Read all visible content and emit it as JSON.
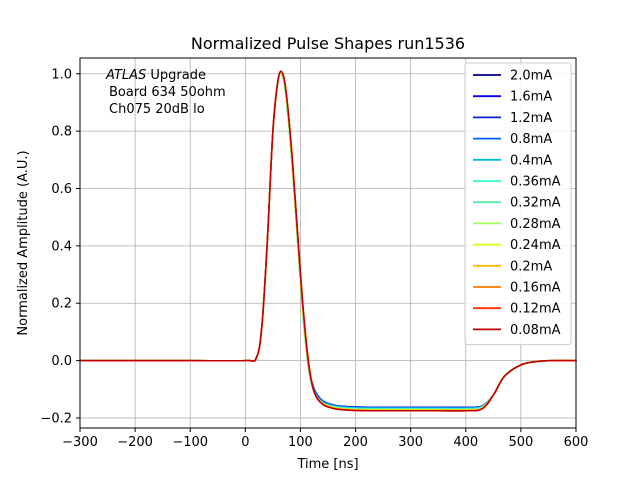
{
  "chart_data": {
    "type": "line",
    "title": "Normalized Pulse Shapes run1536",
    "xlabel": "Time [ns]",
    "ylabel": "Normalized Amplitude (A.U.)",
    "xlim": [
      -300,
      600
    ],
    "ylim": [
      -0.235,
      1.055
    ],
    "xticks": [
      -300,
      -200,
      -100,
      0,
      100,
      200,
      300,
      400,
      500,
      600
    ],
    "xtick_labels": [
      "−300",
      "−200",
      "−100",
      "0",
      "100",
      "200",
      "300",
      "400",
      "500",
      "600"
    ],
    "yticks": [
      -0.2,
      0.0,
      0.2,
      0.4,
      0.6,
      0.8,
      1.0
    ],
    "ytick_labels": [
      "−0.2",
      "0.0",
      "0.2",
      "0.4",
      "0.6",
      "0.8",
      "1.0"
    ],
    "grid": true,
    "legend_position": "top-right",
    "annotation": {
      "lines": [
        "ATLAS Upgrade",
        "Board 634 50ohm",
        "Ch075 20dB lo"
      ],
      "italic_word": "ATLAS",
      "position": "top-left"
    },
    "x": [
      -300,
      -100,
      0,
      20,
      30,
      40,
      50,
      60,
      68,
      75,
      85,
      95,
      105,
      115,
      125,
      140,
      160,
      180,
      200,
      230,
      260,
      300,
      350,
      400,
      430,
      450,
      470,
      500,
      530,
      560,
      600
    ],
    "series": [
      {
        "name": "2.0mA",
        "color": "#00007f",
        "values": [
          0,
          0,
          0,
          0.01,
          0.12,
          0.42,
          0.8,
          0.985,
          0.99,
          0.91,
          0.7,
          0.43,
          0.17,
          -0.02,
          -0.1,
          -0.14,
          -0.155,
          -0.16,
          -0.162,
          -0.163,
          -0.163,
          -0.163,
          -0.163,
          -0.163,
          -0.158,
          -0.12,
          -0.055,
          -0.015,
          -0.003,
          0,
          0
        ]
      },
      {
        "name": "1.6mA",
        "color": "#0000e6",
        "values": [
          0,
          0,
          0,
          0.01,
          0.12,
          0.42,
          0.8,
          0.985,
          0.99,
          0.91,
          0.7,
          0.43,
          0.17,
          -0.02,
          -0.1,
          -0.14,
          -0.155,
          -0.16,
          -0.162,
          -0.163,
          -0.163,
          -0.163,
          -0.163,
          -0.163,
          -0.158,
          -0.12,
          -0.055,
          -0.015,
          -0.003,
          0,
          0
        ]
      },
      {
        "name": "1.2mA",
        "color": "#0a1fd6",
        "values": [
          0,
          0,
          0,
          0.01,
          0.12,
          0.42,
          0.8,
          0.985,
          0.99,
          0.91,
          0.7,
          0.43,
          0.17,
          -0.02,
          -0.1,
          -0.14,
          -0.155,
          -0.16,
          -0.162,
          -0.163,
          -0.163,
          -0.163,
          -0.163,
          -0.163,
          -0.158,
          -0.12,
          -0.055,
          -0.015,
          -0.003,
          0,
          0
        ]
      },
      {
        "name": "0.8mA",
        "color": "#005cff",
        "values": [
          0,
          0,
          0,
          0.01,
          0.12,
          0.42,
          0.8,
          0.985,
          0.99,
          0.91,
          0.7,
          0.43,
          0.17,
          -0.02,
          -0.1,
          -0.14,
          -0.156,
          -0.161,
          -0.163,
          -0.164,
          -0.164,
          -0.164,
          -0.164,
          -0.164,
          -0.159,
          -0.12,
          -0.055,
          -0.015,
          -0.003,
          0,
          0
        ]
      },
      {
        "name": "0.4mA",
        "color": "#00bcd8",
        "values": [
          0,
          0,
          0,
          0.01,
          0.12,
          0.42,
          0.8,
          0.985,
          0.99,
          0.9,
          0.68,
          0.41,
          0.15,
          -0.03,
          -0.11,
          -0.145,
          -0.158,
          -0.163,
          -0.165,
          -0.166,
          -0.166,
          -0.166,
          -0.166,
          -0.166,
          -0.16,
          -0.12,
          -0.055,
          -0.015,
          -0.003,
          0,
          0
        ]
      },
      {
        "name": "0.36mA",
        "color": "#2effd2",
        "values": [
          0,
          0,
          0,
          0.01,
          0.12,
          0.42,
          0.8,
          0.985,
          0.99,
          0.9,
          0.68,
          0.41,
          0.15,
          -0.03,
          -0.11,
          -0.146,
          -0.16,
          -0.165,
          -0.167,
          -0.168,
          -0.168,
          -0.168,
          -0.168,
          -0.168,
          -0.161,
          -0.12,
          -0.055,
          -0.015,
          -0.003,
          0,
          0
        ]
      },
      {
        "name": "0.32mA",
        "color": "#5fe6a0",
        "values": [
          0,
          0,
          0,
          0.01,
          0.12,
          0.42,
          0.8,
          0.985,
          0.99,
          0.9,
          0.68,
          0.41,
          0.15,
          -0.03,
          -0.11,
          -0.147,
          -0.162,
          -0.167,
          -0.169,
          -0.17,
          -0.17,
          -0.17,
          -0.17,
          -0.17,
          -0.163,
          -0.12,
          -0.055,
          -0.015,
          -0.003,
          0,
          0
        ]
      },
      {
        "name": "0.28mA",
        "color": "#a2ff54",
        "values": [
          0,
          0,
          0,
          0.01,
          0.12,
          0.42,
          0.8,
          0.985,
          0.995,
          0.91,
          0.69,
          0.42,
          0.16,
          -0.02,
          -0.11,
          -0.148,
          -0.163,
          -0.168,
          -0.17,
          -0.171,
          -0.171,
          -0.171,
          -0.171,
          -0.171,
          -0.164,
          -0.12,
          -0.055,
          -0.015,
          -0.003,
          0,
          0
        ]
      },
      {
        "name": "0.24mA",
        "color": "#e4ff12",
        "values": [
          0,
          0,
          0,
          0.01,
          0.12,
          0.42,
          0.8,
          0.985,
          0.995,
          0.91,
          0.69,
          0.42,
          0.16,
          -0.02,
          -0.11,
          -0.149,
          -0.164,
          -0.169,
          -0.171,
          -0.172,
          -0.172,
          -0.172,
          -0.172,
          -0.172,
          -0.165,
          -0.12,
          -0.055,
          -0.015,
          -0.003,
          0,
          0
        ]
      },
      {
        "name": "0.2mA",
        "color": "#ffbd00",
        "values": [
          0,
          0,
          0,
          0.01,
          0.12,
          0.42,
          0.8,
          0.985,
          0.998,
          0.92,
          0.7,
          0.43,
          0.17,
          -0.02,
          -0.11,
          -0.15,
          -0.165,
          -0.17,
          -0.172,
          -0.173,
          -0.173,
          -0.173,
          -0.173,
          -0.173,
          -0.166,
          -0.12,
          -0.055,
          -0.015,
          -0.003,
          0,
          0
        ]
      },
      {
        "name": "0.16mA",
        "color": "#ff7a00",
        "values": [
          0,
          0,
          0,
          0.01,
          0.12,
          0.42,
          0.8,
          0.985,
          0.999,
          0.92,
          0.7,
          0.43,
          0.17,
          -0.02,
          -0.11,
          -0.151,
          -0.166,
          -0.171,
          -0.173,
          -0.174,
          -0.174,
          -0.174,
          -0.174,
          -0.174,
          -0.167,
          -0.12,
          -0.055,
          -0.015,
          -0.003,
          0,
          0
        ]
      },
      {
        "name": "0.12mA",
        "color": "#ff3000",
        "values": [
          0,
          0,
          0,
          0.01,
          0.12,
          0.42,
          0.8,
          0.985,
          1.0,
          0.92,
          0.71,
          0.44,
          0.18,
          -0.01,
          -0.11,
          -0.152,
          -0.167,
          -0.172,
          -0.174,
          -0.175,
          -0.175,
          -0.175,
          -0.175,
          -0.175,
          -0.168,
          -0.12,
          -0.055,
          -0.015,
          -0.003,
          0,
          0
        ]
      },
      {
        "name": "0.08mA",
        "color": "#c00000",
        "values": [
          0,
          0,
          0,
          0.01,
          0.12,
          0.42,
          0.8,
          0.985,
          1.0,
          0.92,
          0.71,
          0.44,
          0.18,
          -0.01,
          -0.11,
          -0.152,
          -0.167,
          -0.172,
          -0.174,
          -0.175,
          -0.175,
          -0.175,
          -0.175,
          -0.175,
          -0.168,
          -0.12,
          -0.055,
          -0.015,
          -0.003,
          0,
          0
        ]
      }
    ]
  }
}
